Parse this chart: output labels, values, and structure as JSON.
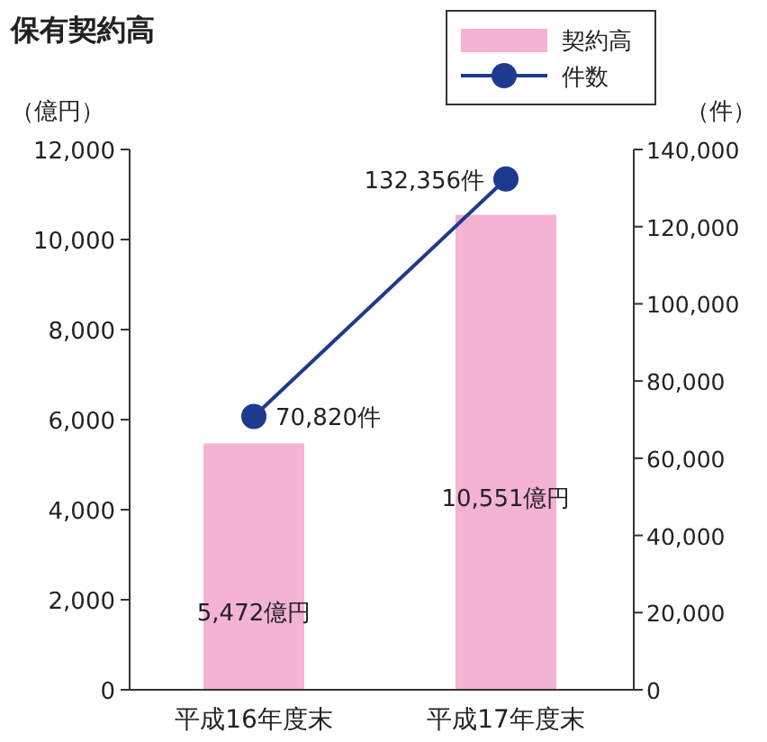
{
  "chart_data": {
    "type": "bar",
    "title": "保有契約高",
    "ylabel": "（億円）",
    "y2label": "（件）",
    "categories": [
      "平成16年度末",
      "平成17年度末"
    ],
    "series": [
      {
        "name": "契約高",
        "color": "#f4b3d3",
        "values": [
          5472,
          10551
        ],
        "value_labels": [
          "5,472億円",
          "10,551億円"
        ]
      },
      {
        "name": "件数",
        "type": "line",
        "axis": "y2",
        "color": "#1d3a8f",
        "marker": "circle",
        "values": [
          70820,
          132356
        ],
        "value_labels": [
          "70,820件",
          "132,356件"
        ]
      }
    ],
    "ylim": [
      0,
      12000
    ],
    "yticks": [
      {
        "value": 0,
        "label": "0"
      },
      {
        "value": 2000,
        "label": "2,000"
      },
      {
        "value": 4000,
        "label": "4,000"
      },
      {
        "value": 6000,
        "label": "6,000"
      },
      {
        "value": 8000,
        "label": "8,000"
      },
      {
        "value": 10000,
        "label": "10,000"
      },
      {
        "value": 12000,
        "label": "12,000"
      }
    ],
    "y2lim": [
      0,
      140000
    ],
    "y2ticks": [
      {
        "value": 0,
        "label": "0"
      },
      {
        "value": 20000,
        "label": "20,000"
      },
      {
        "value": 40000,
        "label": "40,000"
      },
      {
        "value": 60000,
        "label": "60,000"
      },
      {
        "value": 80000,
        "label": "80,000"
      },
      {
        "value": 100000,
        "label": "100,000"
      },
      {
        "value": 120000,
        "label": "120,000"
      },
      {
        "value": 140000,
        "label": "140,000"
      }
    ],
    "legend": "top right",
    "grid": false
  }
}
